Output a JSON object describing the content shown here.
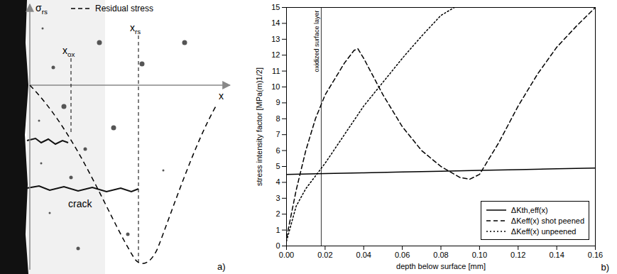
{
  "diagram": {
    "panel_label": "a)",
    "legend": {
      "text": "Residual stress",
      "line_style": "dashed"
    },
    "axes": {
      "y": {
        "symbol": "σ",
        "subscript": "rs"
      },
      "x": {
        "symbol": "x"
      }
    },
    "markers": [
      {
        "symbol": "x",
        "subscript": "ox"
      },
      {
        "symbol": "x",
        "subscript": "rs"
      }
    ],
    "labels": [
      "crack"
    ]
  },
  "chart_data": {
    "type": "line",
    "panel_label": "b)",
    "xlabel": "depth below surface [mm]",
    "ylabel": "stress intensity factor [MPa(m)1/2]",
    "xlim": [
      0,
      0.16
    ],
    "ylim": [
      0,
      15
    ],
    "xticks": [
      {
        "value": 0,
        "label": "0.00"
      },
      {
        "value": 0.02,
        "label": "0.02"
      },
      {
        "value": 0.04,
        "label": "0.04"
      },
      {
        "value": 0.06,
        "label": "0.06"
      },
      {
        "value": 0.08,
        "label": "0.08"
      },
      {
        "value": 0.1,
        "label": "0.10"
      },
      {
        "value": 0.12,
        "label": "0.12"
      },
      {
        "value": 0.14,
        "label": "0.14"
      },
      {
        "value": 0.16,
        "label": "0.16"
      }
    ],
    "yticks": [
      0,
      1,
      2,
      3,
      4,
      5,
      6,
      7,
      8,
      9,
      10,
      11,
      12,
      13,
      14,
      15
    ],
    "grid": false,
    "legend": "bottom-right",
    "annotations": [
      {
        "text": "oxidized surface layer",
        "x": 0.018
      }
    ],
    "series": [
      {
        "name": "ΔKth,eff(x)",
        "color": "#000000",
        "line_style": "solid",
        "x": [
          0,
          0.02,
          0.04,
          0.06,
          0.08,
          0.1,
          0.12,
          0.14,
          0.16
        ],
        "values": [
          4.5,
          4.55,
          4.6,
          4.65,
          4.7,
          4.75,
          4.8,
          4.85,
          4.9
        ]
      },
      {
        "name": "ΔKeff(x) shot peened",
        "color": "#000000",
        "line_style": "dashed",
        "x": [
          0,
          0.005,
          0.01,
          0.015,
          0.02,
          0.025,
          0.03,
          0.035,
          0.037,
          0.04,
          0.05,
          0.06,
          0.07,
          0.08,
          0.09,
          0.095,
          0.1,
          0.11,
          0.12,
          0.13,
          0.14,
          0.15,
          0.16
        ],
        "values": [
          0.5,
          3.5,
          6,
          8,
          9.5,
          10.5,
          11.5,
          12.3,
          12.4,
          11.8,
          9.5,
          7.5,
          6,
          5,
          4.3,
          4.2,
          4.5,
          6.5,
          8.8,
          10.8,
          12.5,
          13.8,
          15
        ]
      },
      {
        "name": "ΔKeff(x) unpeened",
        "color": "#000000",
        "line_style": "dotted",
        "x": [
          0,
          0.005,
          0.01,
          0.02,
          0.03,
          0.04,
          0.05,
          0.06,
          0.07,
          0.08,
          0.087
        ],
        "values": [
          0.3,
          2.5,
          3.6,
          5.2,
          7,
          8.8,
          10.3,
          11.8,
          13.2,
          14.5,
          15
        ]
      }
    ]
  }
}
